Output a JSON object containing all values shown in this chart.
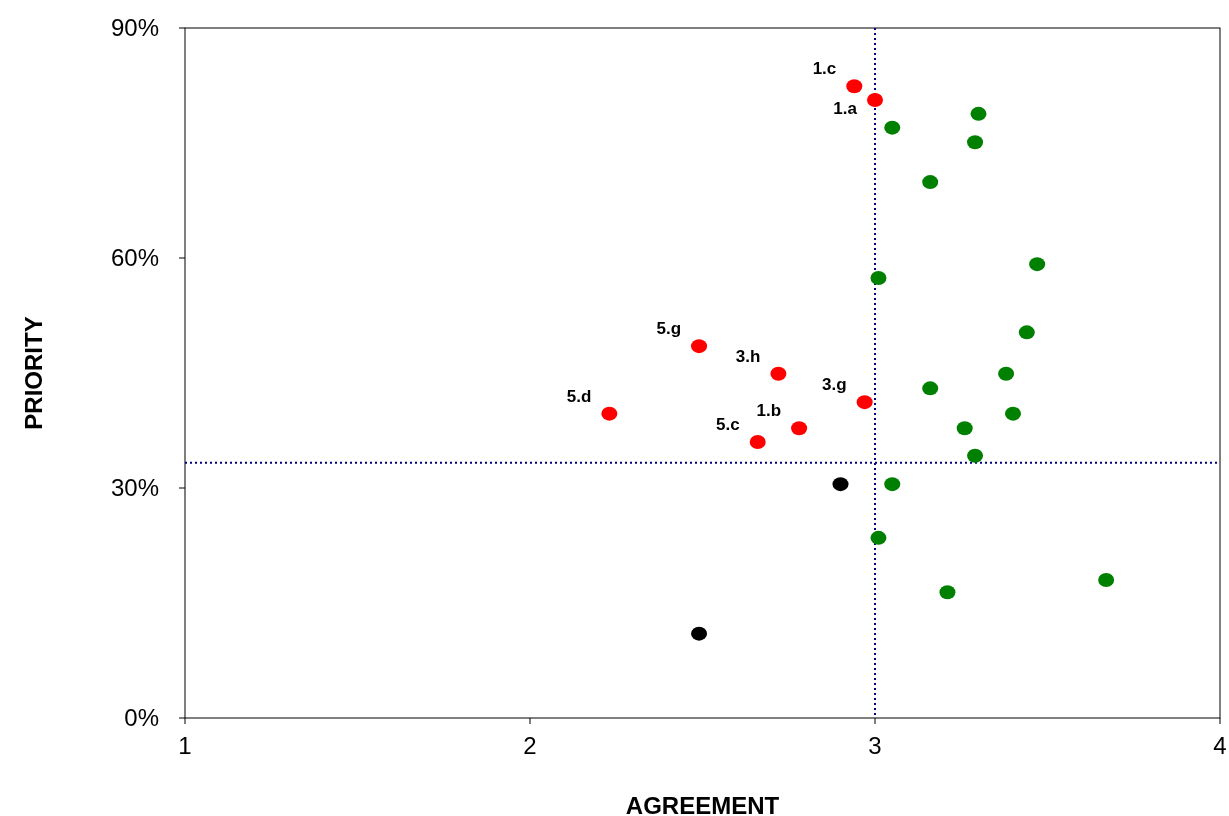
{
  "chart_data": {
    "type": "scatter",
    "xlabel": "AGREEMENT",
    "ylabel": "PRIORITY",
    "xlim": [
      1,
      4
    ],
    "xticks": [
      1,
      2,
      3,
      4
    ],
    "ylim": [
      0,
      90
    ],
    "yticks": [
      {
        "value": 0,
        "label": "0%"
      },
      {
        "value": 30,
        "label": "30%"
      },
      {
        "value": 60,
        "label": "60%"
      },
      {
        "value": 90,
        "label": "90%"
      }
    ],
    "marker": "circle",
    "series": [
      {
        "color": "#ff0000",
        "x": [
          2.94,
          3.0,
          2.49,
          2.72,
          2.23,
          2.97,
          2.66,
          2.78
        ],
        "values": [
          82.4,
          80.6,
          48.5,
          44.9,
          39.7,
          41.2,
          36.0,
          37.8
        ]
      },
      {
        "color": "#008000",
        "x": [
          3.3,
          3.05,
          3.29,
          3.16,
          3.47,
          3.01,
          3.44,
          3.38,
          3.16,
          3.4,
          3.26,
          3.29,
          3.05,
          3.01,
          3.21,
          3.67
        ],
        "values": [
          78.8,
          77.0,
          75.1,
          69.9,
          59.2,
          57.4,
          50.3,
          44.9,
          43.0,
          39.7,
          37.8,
          34.2,
          30.5,
          23.5,
          16.4,
          18.0
        ]
      },
      {
        "color": "#000000",
        "x": [
          2.9,
          2.49
        ],
        "values": [
          30.5,
          11.0
        ]
      }
    ],
    "ref_lines": [
      {
        "axis": "x",
        "value": 3,
        "color": "#000080",
        "line_style": "dotted"
      },
      {
        "axis": "y",
        "value": 33.3,
        "color": "#000080",
        "line_style": "dotted"
      }
    ],
    "annotations": [
      {
        "text": "1.c",
        "x": 2.94,
        "y": 82.4
      },
      {
        "text": "1.a",
        "x": 3.0,
        "y": 80.6
      },
      {
        "text": "5.g",
        "x": 2.49,
        "y": 48.5
      },
      {
        "text": "3.h",
        "x": 2.72,
        "y": 44.9
      },
      {
        "text": "5.d",
        "x": 2.23,
        "y": 39.7
      },
      {
        "text": "3.g",
        "x": 2.97,
        "y": 41.2
      },
      {
        "text": "5.c",
        "x": 2.66,
        "y": 36.0
      },
      {
        "text": "1.b",
        "x": 2.78,
        "y": 37.8
      }
    ]
  }
}
